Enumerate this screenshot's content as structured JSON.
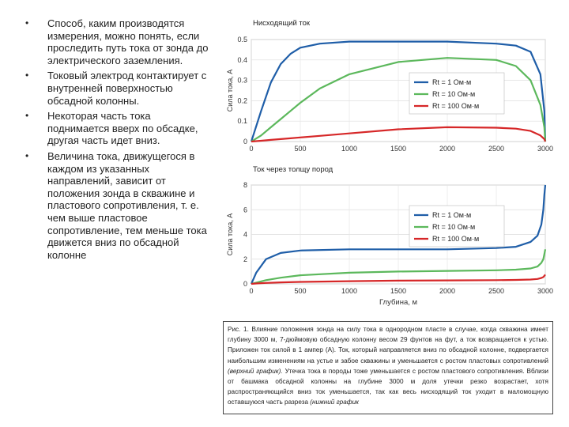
{
  "bullets": [
    {
      "text": "Способ, каким производятся измерения, можно понять, если проследить путь тока от зонда до электрического заземления.",
      "color": "#222222"
    },
    {
      "text": "Токовый электрод контактирует с внутренней поверхностью обсадной колонны.",
      "color": "#222222"
    },
    {
      "text": "Некоторая часть тока поднимается вверх по обсадке, другая часть идет вниз.",
      "color": "#cc1f1f"
    },
    {
      "text": "Величина тока, движущегося в каждом из указанных направлений, зависит от положения зонда в скважине и пластового сопротивления, т. е. чем выше пластовое сопротивление, тем меньше тока движется вниз по обсадной колонне",
      "color": "#cc1f1f"
    }
  ],
  "caption": {
    "part1": "Рис. 1. Влияние положения зонда на силу тока в однородном пласте в случае, когда скважина имеет глубину 3000 м, 7-дюймовую обсадную колонну весом 29 фунтов на фут, а ток возвращается к устью. Приложен ток силой в 1 ампер (А). Ток, который направляется вниз по обсадной колонне, подвергается наибольшим изменениям на устье и забое скважины и уменьшается с ростом пластовых сопротивлений ",
    "em1": "(верхний график).",
    "part2": " Утечка тока в породы тоже уменьшается с ростом пластового сопротивления. Вблизи от башмака обсадной колонны на глубине 3000 м доля утечки резко возрастает, хотя распространяющийся вниз ток уменьшается, так как весь нисходящий ток уходит в маломощную оставшуюся часть разреза ",
    "em2": "(нижний график"
  },
  "colors": {
    "blue": "#1f5ea8",
    "green": "#5cb85c",
    "red": "#d62728"
  },
  "chart_data": [
    {
      "type": "line",
      "title": "Нисходящий ток",
      "ylabel": "Сила тока, А",
      "xlabel": "",
      "xlim": [
        0,
        3000
      ],
      "ylim": [
        0,
        0.5
      ],
      "xticks": [
        "0",
        "500",
        "1000",
        "1500",
        "2000",
        "2500",
        "3000"
      ],
      "yticks": [
        "0",
        "0.1",
        "0.2",
        "0.3",
        "0.4",
        "0.5"
      ],
      "legend": "center-right",
      "x": [
        0,
        100,
        200,
        300,
        400,
        500,
        700,
        1000,
        1500,
        2000,
        2500,
        2700,
        2850,
        2950,
        2990,
        3000
      ],
      "series": [
        {
          "name": "Rt = 1 Ом·м",
          "color": "#1f5ea8",
          "values": [
            0.0,
            0.15,
            0.29,
            0.38,
            0.43,
            0.46,
            0.48,
            0.49,
            0.49,
            0.49,
            0.48,
            0.47,
            0.44,
            0.33,
            0.15,
            0.0
          ]
        },
        {
          "name": "Rt = 10 Ом·м",
          "color": "#5cb85c",
          "values": [
            0.0,
            0.03,
            0.07,
            0.11,
            0.15,
            0.19,
            0.26,
            0.33,
            0.39,
            0.41,
            0.4,
            0.37,
            0.3,
            0.18,
            0.07,
            0.0
          ]
        },
        {
          "name": "Rt = 100 Ом·м",
          "color": "#d62728",
          "values": [
            0.0,
            0.004,
            0.008,
            0.012,
            0.016,
            0.02,
            0.028,
            0.04,
            0.06,
            0.07,
            0.068,
            0.063,
            0.052,
            0.03,
            0.012,
            0.0
          ]
        }
      ]
    },
    {
      "type": "line",
      "title": "Ток через толщу пород",
      "ylabel": "Сила тока, А",
      "xlabel": "Глубина, м",
      "xlim": [
        0,
        3000
      ],
      "ylim": [
        0,
        8
      ],
      "xticks": [
        "0",
        "500",
        "1000",
        "1500",
        "2000",
        "2500",
        "3000"
      ],
      "yticks": [
        "0",
        "2",
        "4",
        "6",
        "8"
      ],
      "legend": "top-right",
      "x": [
        0,
        50,
        150,
        300,
        500,
        1000,
        1500,
        2000,
        2500,
        2700,
        2850,
        2920,
        2960,
        2980,
        2990,
        3000
      ],
      "series": [
        {
          "name": "Rt = 1 Ом·м",
          "color": "#1f5ea8",
          "values": [
            0.0,
            0.9,
            2.0,
            2.5,
            2.7,
            2.8,
            2.8,
            2.8,
            2.9,
            3.0,
            3.4,
            3.9,
            4.8,
            6.0,
            7.2,
            8.0
          ]
        },
        {
          "name": "Rt = 10 Ом·м",
          "color": "#5cb85c",
          "values": [
            0.0,
            0.1,
            0.3,
            0.5,
            0.7,
            0.9,
            1.0,
            1.05,
            1.1,
            1.15,
            1.25,
            1.4,
            1.7,
            2.0,
            2.4,
            2.8
          ]
        },
        {
          "name": "Rt = 100 Ом·м",
          "color": "#d62728",
          "values": [
            0.0,
            0.03,
            0.08,
            0.12,
            0.16,
            0.22,
            0.26,
            0.28,
            0.3,
            0.32,
            0.35,
            0.4,
            0.48,
            0.55,
            0.65,
            0.75
          ]
        }
      ]
    }
  ]
}
